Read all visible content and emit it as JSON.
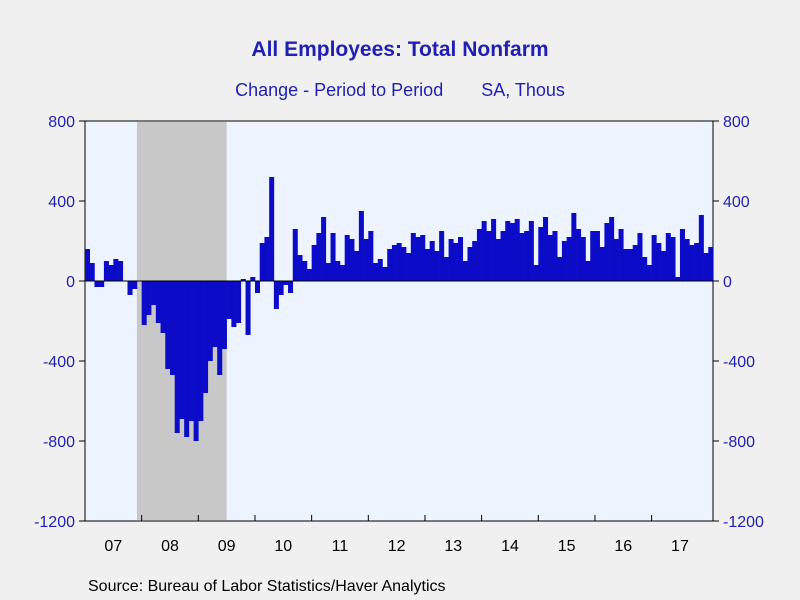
{
  "title": "All Employees: Total Nonfarm",
  "subtitle_left": "Change - Period to Period",
  "subtitle_right": "SA, Thous",
  "source": "Source:  Bureau of Labor Statistics/Haver Analytics",
  "colors": {
    "bar": "#0b0bc8",
    "plot_bg": "#eef4ff",
    "recession": "#c8c8c8",
    "axis_text": "#1f1fb4",
    "page_bg": "#f0f0f0"
  },
  "chart_data": {
    "type": "bar",
    "title": "All Employees: Total Nonfarm",
    "subtitle": "Change - Period to Period    SA, Thous",
    "ylim": [
      -1200,
      800
    ],
    "yticks": [
      800,
      400,
      0,
      -400,
      -800,
      -1200
    ],
    "x_tick_labels": [
      "07",
      "08",
      "09",
      "10",
      "11",
      "12",
      "13",
      "14",
      "15",
      "16",
      "17"
    ],
    "grid": false,
    "recession_shading": {
      "start": "2007-12",
      "end": "2009-06"
    },
    "series": [
      {
        "start": "2007-01",
        "frequency": "monthly",
        "values": [
          160,
          90,
          -30,
          -30,
          100,
          80,
          110,
          100,
          0,
          -70,
          -40,
          0,
          -220,
          -170,
          -120,
          -210,
          -260,
          -440,
          -470,
          -760,
          -690,
          -780,
          -700,
          -800,
          -700,
          -560,
          -400,
          -330,
          -470,
          -340,
          -190,
          -230,
          -210,
          10,
          -270,
          20,
          -60,
          190,
          220,
          520,
          -140,
          -70,
          -20,
          -60,
          260,
          130,
          100,
          60,
          180,
          240,
          320,
          90,
          240,
          100,
          80,
          230,
          210,
          150,
          350,
          210,
          250,
          90,
          110,
          70,
          160,
          180,
          190,
          170,
          140,
          240,
          220,
          230,
          160,
          200,
          150,
          250,
          120,
          210,
          190,
          220,
          100,
          170,
          200,
          260,
          300,
          250,
          310,
          210,
          250,
          300,
          290,
          310,
          240,
          250,
          300,
          80,
          270,
          320,
          230,
          250,
          120,
          200,
          220,
          340,
          260,
          220,
          100,
          250,
          250,
          170,
          290,
          320,
          210,
          260,
          160,
          160,
          180,
          240,
          120,
          80,
          230,
          190,
          150,
          240,
          220,
          20,
          260,
          210,
          180,
          190,
          330,
          140,
          170
        ]
      }
    ]
  }
}
